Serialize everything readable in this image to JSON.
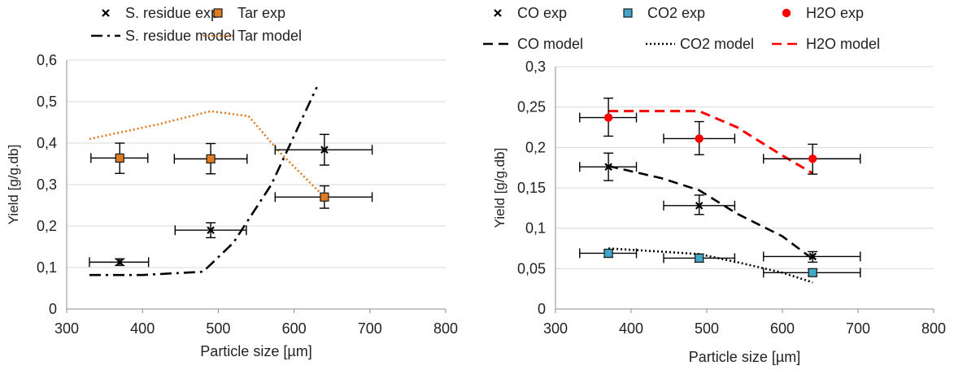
{
  "chart_data": [
    {
      "type": "scatter",
      "xlabel": "Particle size [µm]",
      "ylabel": "Yield [g/g.db]",
      "xlim": [
        300,
        800
      ],
      "ylim": [
        0,
        0.6
      ],
      "xticks": [
        300,
        400,
        500,
        600,
        700,
        800
      ],
      "yticks": [
        0,
        0.1,
        0.2,
        0.3,
        0.4,
        0.5,
        0.6
      ],
      "xtick_labels": [
        "300",
        "400",
        "500",
        "600",
        "700",
        "800"
      ],
      "ytick_labels": [
        "0",
        "0,1",
        "0,2",
        "0,3",
        "0,4",
        "0,5",
        "0,6"
      ],
      "grid": "horizontal",
      "legend_position": "top",
      "series": [
        {
          "name": "S. residue exp",
          "kind": "points",
          "marker": "x",
          "color": "#000000",
          "points": [
            {
              "x": 370,
              "y": 0.113,
              "xerr": [
                330,
                408
              ],
              "yerr": [
                0.105,
                0.121
              ]
            },
            {
              "x": 490,
              "y": 0.19,
              "xerr": [
                443,
                537
              ],
              "yerr": [
                0.172,
                0.208
              ]
            },
            {
              "x": 640,
              "y": 0.384,
              "xerr": [
                575,
                703
              ],
              "yerr": [
                0.347,
                0.421
              ]
            }
          ]
        },
        {
          "name": "Tar exp",
          "kind": "points",
          "marker": "square",
          "color": "#e07b1f",
          "points": [
            {
              "x": 370,
              "y": 0.364,
              "xerr": [
                332,
                407
              ],
              "yerr": [
                0.327,
                0.4
              ]
            },
            {
              "x": 490,
              "y": 0.362,
              "xerr": [
                442,
                538
              ],
              "yerr": [
                0.326,
                0.399
              ]
            },
            {
              "x": 640,
              "y": 0.27,
              "xerr": [
                575,
                703
              ],
              "yerr": [
                0.243,
                0.297
              ]
            }
          ]
        },
        {
          "name": "S. residue model",
          "kind": "line",
          "dash": "dashdot",
          "color": "#000000",
          "x": [
            330,
            400,
            480,
            520,
            570,
            630
          ],
          "y": [
            0.082,
            0.082,
            0.09,
            0.16,
            0.3,
            0.535
          ]
        },
        {
          "name": "Tar model",
          "kind": "line",
          "dash": "dot",
          "color": "#e07b1f",
          "x": [
            330,
            420,
            490,
            540,
            580,
            640
          ],
          "y": [
            0.41,
            0.445,
            0.477,
            0.465,
            0.38,
            0.27
          ]
        }
      ]
    },
    {
      "type": "scatter",
      "xlabel": "Particle size [µm]",
      "ylabel": "Yield [g/g.db]",
      "xlim": [
        300,
        800
      ],
      "ylim": [
        0,
        0.3
      ],
      "xticks": [
        300,
        400,
        500,
        600,
        700,
        800
      ],
      "yticks": [
        0,
        0.05,
        0.1,
        0.15,
        0.2,
        0.25,
        0.3
      ],
      "xtick_labels": [
        "300",
        "400",
        "500",
        "600",
        "700",
        "800"
      ],
      "ytick_labels": [
        "0",
        "0,05",
        "0,1",
        "0,15",
        "0,2",
        "0,25",
        "0,3"
      ],
      "grid": "horizontal",
      "legend_position": "top",
      "series": [
        {
          "name": "CO exp",
          "kind": "points",
          "marker": "x",
          "color": "#000000",
          "points": [
            {
              "x": 370,
              "y": 0.176,
              "xerr": [
                332,
                407
              ],
              "yerr": [
                0.159,
                0.193
              ]
            },
            {
              "x": 490,
              "y": 0.128,
              "xerr": [
                443,
                537
              ],
              "yerr": [
                0.117,
                0.141
              ]
            },
            {
              "x": 640,
              "y": 0.065,
              "xerr": [
                575,
                703
              ],
              "yerr": [
                0.058,
                0.071
              ]
            }
          ]
        },
        {
          "name": "CO2 exp",
          "kind": "points",
          "marker": "square",
          "color": "#3fa7c9",
          "points": [
            {
              "x": 370,
              "y": 0.069,
              "xerr": [
                332,
                407
              ],
              "yerr": [
                0.064,
                0.073
              ]
            },
            {
              "x": 490,
              "y": 0.063,
              "xerr": [
                443,
                537
              ],
              "yerr": [
                0.058,
                0.068
              ]
            },
            {
              "x": 640,
              "y": 0.045,
              "xerr": [
                575,
                703
              ],
              "yerr": [
                0.041,
                0.049
              ]
            }
          ]
        },
        {
          "name": "H2O exp",
          "kind": "points",
          "marker": "circle",
          "color": "#ff0000",
          "points": [
            {
              "x": 370,
              "y": 0.237,
              "xerr": [
                332,
                407
              ],
              "yerr": [
                0.214,
                0.261
              ]
            },
            {
              "x": 490,
              "y": 0.211,
              "xerr": [
                443,
                537
              ],
              "yerr": [
                0.191,
                0.232
              ]
            },
            {
              "x": 640,
              "y": 0.186,
              "xerr": [
                575,
                703
              ],
              "yerr": [
                0.167,
                0.204
              ]
            }
          ]
        },
        {
          "name": "CO model",
          "kind": "line",
          "dash": "dash",
          "color": "#000000",
          "x": [
            370,
            440,
            490,
            540,
            600,
            640
          ],
          "y": [
            0.177,
            0.162,
            0.147,
            0.118,
            0.09,
            0.062
          ]
        },
        {
          "name": "CO2 model",
          "kind": "line",
          "dash": "dot",
          "color": "#000000",
          "x": [
            370,
            440,
            490,
            540,
            600,
            640
          ],
          "y": [
            0.075,
            0.071,
            0.068,
            0.058,
            0.045,
            0.033
          ]
        },
        {
          "name": "H2O model",
          "kind": "line",
          "dash": "dash",
          "color": "#ff0000",
          "x": [
            370,
            440,
            490,
            540,
            600,
            640
          ],
          "y": [
            0.245,
            0.245,
            0.245,
            0.225,
            0.19,
            0.168
          ]
        }
      ]
    }
  ]
}
